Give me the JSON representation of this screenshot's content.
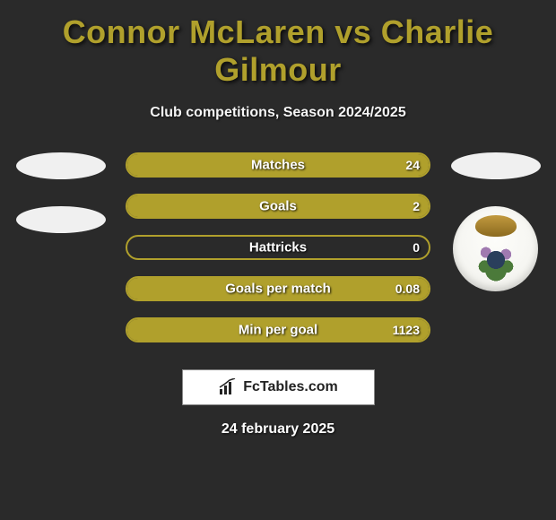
{
  "colors": {
    "background": "#2a2a2a",
    "accent": "#b0a02c",
    "bar_border": "#b0a02c",
    "fill_right": "#b0a02c",
    "fill_left": "#2a2a2a",
    "text_light": "#ffffff"
  },
  "title": "Connor McLaren vs Charlie Gilmour",
  "subtitle": "Club competitions, Season 2024/2025",
  "date": "24 february 2025",
  "brand": "FcTables.com",
  "stats": [
    {
      "label": "Matches",
      "left_val": "",
      "right_val": "24",
      "left_pct": 0,
      "right_pct": 100
    },
    {
      "label": "Goals",
      "left_val": "",
      "right_val": "2",
      "left_pct": 0,
      "right_pct": 100
    },
    {
      "label": "Hattricks",
      "left_val": "",
      "right_val": "0",
      "left_pct": 0,
      "right_pct": 0
    },
    {
      "label": "Goals per match",
      "left_val": "",
      "right_val": "0.08",
      "left_pct": 0,
      "right_pct": 100
    },
    {
      "label": "Min per goal",
      "left_val": "",
      "right_val": "1123",
      "left_pct": 0,
      "right_pct": 100
    }
  ]
}
